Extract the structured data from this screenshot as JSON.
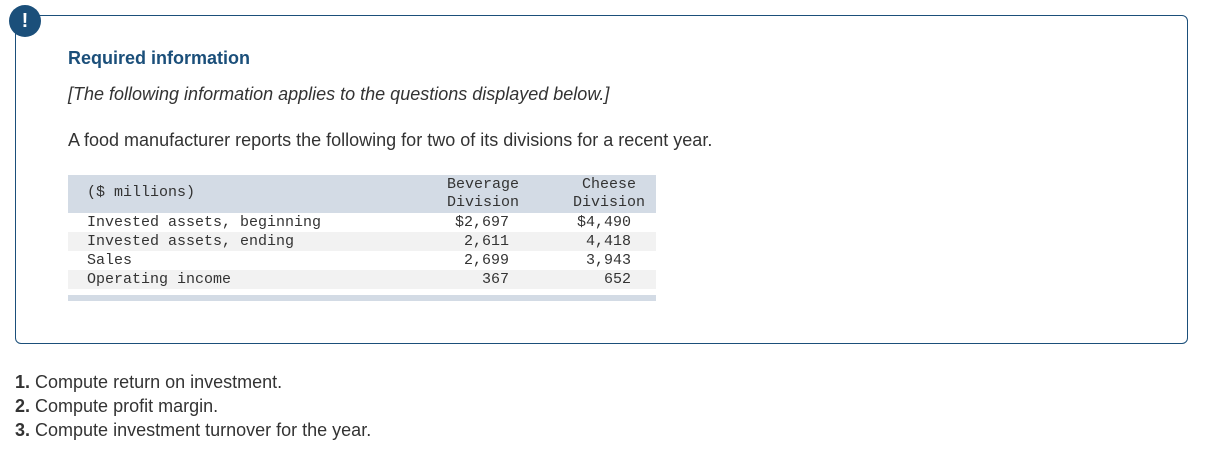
{
  "badge": {
    "symbol": "!"
  },
  "info": {
    "title": "Required information",
    "note": "[The following information applies to the questions displayed below.]",
    "intro": "A food manufacturer reports the following for two of its divisions for a recent year."
  },
  "table": {
    "unit_label": "($ millions)",
    "col_beverage": [
      "Beverage",
      "Division"
    ],
    "col_cheese": [
      "Cheese",
      "Division"
    ],
    "rows": [
      {
        "label": "Invested assets, beginning",
        "beverage": "$2,697",
        "cheese": "$4,490"
      },
      {
        "label": "Invested assets, ending",
        "beverage": "2,611",
        "cheese": "4,418"
      },
      {
        "label": "Sales",
        "beverage": "2,699",
        "cheese": "3,943"
      },
      {
        "label": "Operating income",
        "beverage": "367",
        "cheese": "652"
      }
    ]
  },
  "questions": [
    {
      "num": "1.",
      "text": "Compute return on investment."
    },
    {
      "num": "2.",
      "text": "Compute profit margin."
    },
    {
      "num": "3.",
      "text": "Compute investment turnover for the year."
    }
  ],
  "colors": {
    "accent": "#1b4f7a",
    "table_header": "#d3dbe5",
    "row_shade": "#f2f2f2"
  }
}
